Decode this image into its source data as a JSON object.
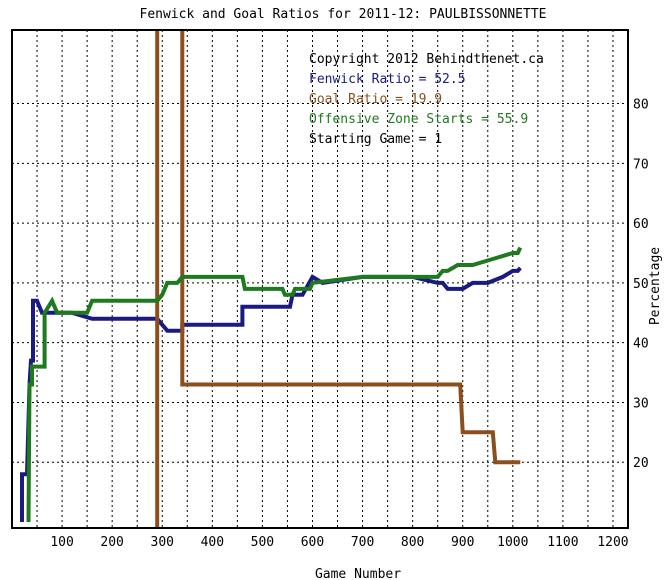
{
  "chart_data": {
    "type": "line",
    "title": "Fenwick and Goal Ratios for 2011-12: PAULBISSONNETTE",
    "xlabel": "Game Number",
    "ylabel": "Percentage",
    "xlim": [
      0,
      1230
    ],
    "ylim": [
      9,
      92.3
    ],
    "x_ticks": [
      100,
      200,
      300,
      400,
      500,
      600,
      700,
      800,
      900,
      1000,
      1100,
      1200
    ],
    "y_ticks": [
      20,
      30,
      40,
      50,
      60,
      70,
      80
    ],
    "grid": true,
    "y_axis_side": "right",
    "annotations": [
      {
        "text": "Copyright 2012 Behindthenet.ca",
        "color": "#000000"
      },
      {
        "text": "Fenwick Ratio = 52.5",
        "color": "#1a1a80"
      },
      {
        "text": "Goal Ratio = 19.9",
        "color": "#8b4f1e"
      },
      {
        "text": "Offensive Zone Starts = 55.9",
        "color": "#1f7a1f"
      },
      {
        "text": "Starting Game = 1",
        "color": "#000000"
      }
    ],
    "series": [
      {
        "key": "fenwick",
        "color": "#1a1a80",
        "points": [
          [
            20,
            10
          ],
          [
            20,
            18
          ],
          [
            30,
            18
          ],
          [
            30,
            18
          ],
          [
            35,
            33
          ],
          [
            38,
            37
          ],
          [
            42,
            37
          ],
          [
            42,
            47
          ],
          [
            50,
            47
          ],
          [
            55,
            46
          ],
          [
            60,
            45
          ],
          [
            75,
            45
          ],
          [
            90,
            45
          ],
          [
            100,
            45
          ],
          [
            120,
            45
          ],
          [
            160,
            44
          ],
          [
            200,
            44
          ],
          [
            250,
            44
          ],
          [
            290,
            44
          ],
          [
            310,
            42
          ],
          [
            340,
            42
          ],
          [
            340,
            43
          ],
          [
            380,
            43
          ],
          [
            400,
            43
          ],
          [
            460,
            43
          ],
          [
            460,
            46
          ],
          [
            500,
            46
          ],
          [
            540,
            46
          ],
          [
            555,
            46
          ],
          [
            560,
            48
          ],
          [
            580,
            48
          ],
          [
            600,
            51
          ],
          [
            620,
            50
          ],
          [
            700,
            51
          ],
          [
            800,
            51
          ],
          [
            850,
            50
          ],
          [
            860,
            50
          ],
          [
            870,
            49
          ],
          [
            900,
            49
          ],
          [
            920,
            50
          ],
          [
            950,
            50
          ],
          [
            980,
            51
          ],
          [
            1000,
            52
          ],
          [
            1010,
            52
          ],
          [
            1015,
            52.5
          ]
        ]
      },
      {
        "key": "goal",
        "color": "#8b4f1e",
        "points": [
          [
            290,
            9
          ],
          [
            290,
            100
          ],
          [
            340,
            100
          ],
          [
            340,
            33
          ],
          [
            400,
            33
          ],
          [
            500,
            33
          ],
          [
            600,
            33
          ],
          [
            700,
            33
          ],
          [
            800,
            33
          ],
          [
            895,
            33
          ],
          [
            900,
            25
          ],
          [
            960,
            25
          ],
          [
            965,
            20
          ],
          [
            1015,
            20
          ]
        ]
      },
      {
        "key": "ozone",
        "color": "#1f7a1f",
        "points": [
          [
            33,
            10
          ],
          [
            35,
            33
          ],
          [
            40,
            33
          ],
          [
            40,
            36
          ],
          [
            55,
            36
          ],
          [
            65,
            36
          ],
          [
            65,
            45
          ],
          [
            80,
            47
          ],
          [
            90,
            45
          ],
          [
            150,
            45
          ],
          [
            160,
            47
          ],
          [
            290,
            47
          ],
          [
            300,
            48
          ],
          [
            310,
            50
          ],
          [
            330,
            50
          ],
          [
            340,
            51
          ],
          [
            400,
            51
          ],
          [
            460,
            51
          ],
          [
            465,
            49
          ],
          [
            540,
            49
          ],
          [
            545,
            48
          ],
          [
            560,
            48
          ],
          [
            565,
            49
          ],
          [
            595,
            49
          ],
          [
            600,
            50
          ],
          [
            700,
            51
          ],
          [
            800,
            51
          ],
          [
            840,
            51
          ],
          [
            850,
            51
          ],
          [
            860,
            52
          ],
          [
            870,
            52
          ],
          [
            890,
            53
          ],
          [
            920,
            53
          ],
          [
            960,
            54
          ],
          [
            1000,
            55
          ],
          [
            1010,
            55
          ],
          [
            1015,
            55.9
          ]
        ]
      }
    ]
  }
}
